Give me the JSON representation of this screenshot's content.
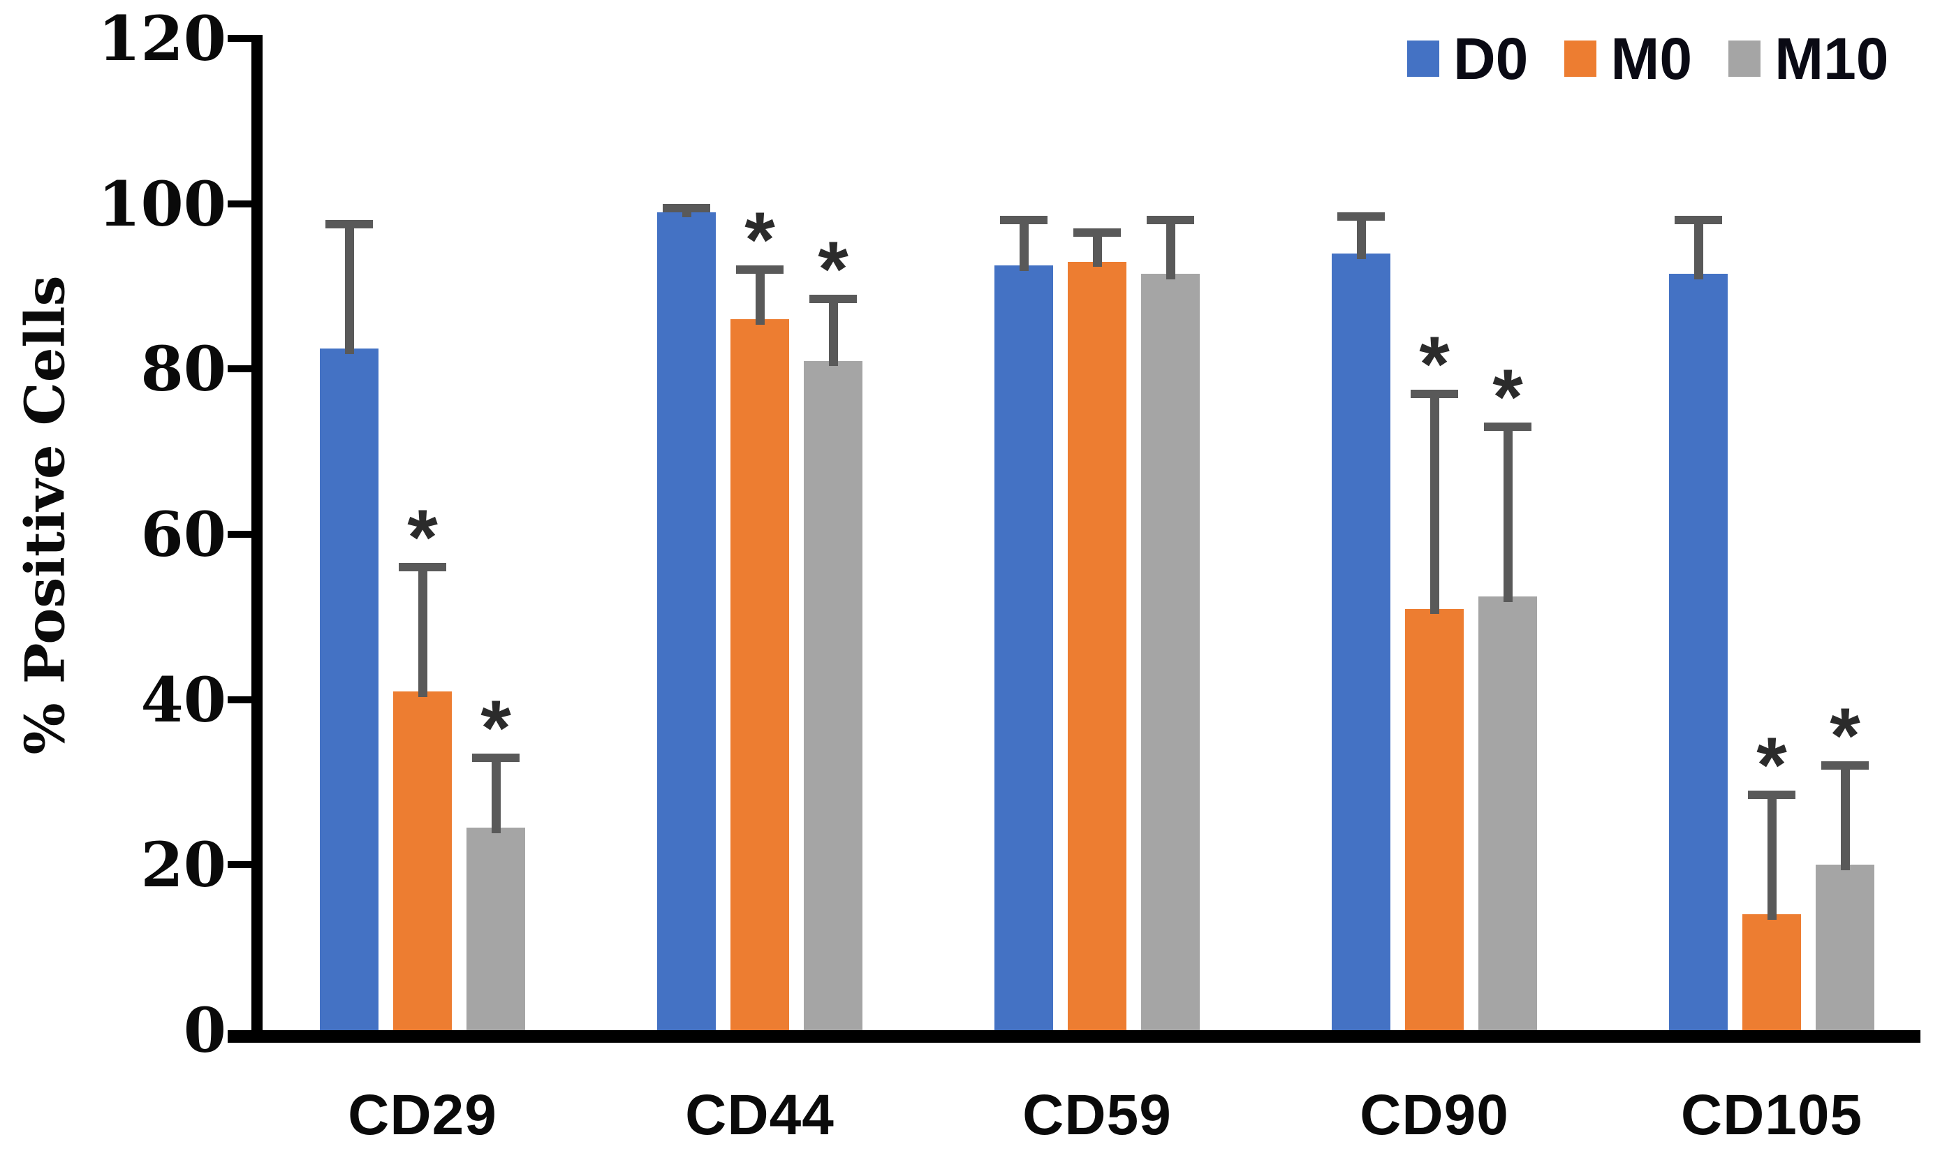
{
  "chart_data": {
    "type": "bar",
    "title": "",
    "xlabel": "",
    "ylabel": "% Positive Cells",
    "ylim": [
      0,
      120
    ],
    "yticks": [
      0,
      20,
      40,
      60,
      80,
      100,
      120
    ],
    "grid": false,
    "legend_position": "top-right",
    "background_color": "#ffffff",
    "axis_color": "#000000",
    "error_bar_color": "#595959",
    "significance_marker": "*",
    "significance_marker_color": "#2b2b2b",
    "categories": [
      "CD29",
      "CD44",
      "CD59",
      "CD90",
      "CD105"
    ],
    "series": [
      {
        "name": "D0",
        "color": "#4472C4",
        "values": [
          82.5,
          99,
          92.5,
          94,
          91.5
        ],
        "errors_plus": [
          15.5,
          1,
          6,
          5,
          7
        ],
        "significant": [
          false,
          false,
          false,
          false,
          false
        ]
      },
      {
        "name": "M0",
        "color": "#ED7D31",
        "values": [
          41,
          86,
          93,
          51,
          14
        ],
        "errors_plus": [
          15.5,
          6.5,
          4,
          26.5,
          15
        ],
        "significant": [
          true,
          true,
          false,
          true,
          true
        ]
      },
      {
        "name": "M10",
        "color": "#A5A5A5",
        "values": [
          24.5,
          81,
          91.5,
          52.5,
          20
        ],
        "errors_plus": [
          9,
          8,
          7,
          21,
          12.5
        ],
        "significant": [
          true,
          true,
          false,
          true,
          true
        ]
      }
    ]
  }
}
